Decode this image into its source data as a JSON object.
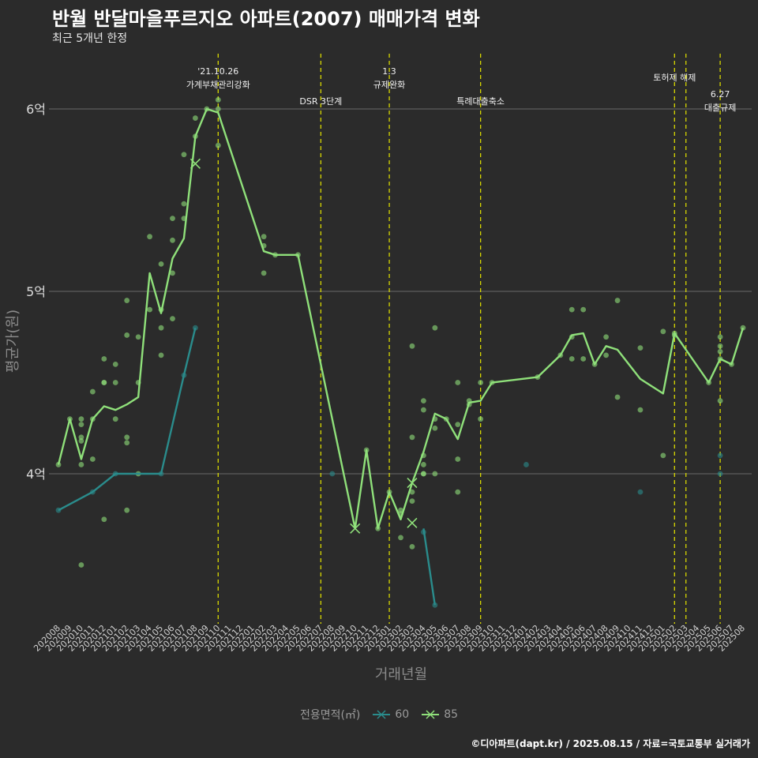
{
  "header": {
    "title": "반월 반달마을푸르지오 아파트(2007) 매매가격 변화",
    "subtitle": "최근 5개년 한정"
  },
  "caption": "©디아파트(dapt.kr) / 2025.08.15 / 자료=국토교통부 실거래가",
  "legend": {
    "title": "전용면적(㎡)",
    "items": [
      {
        "label": "60",
        "color": "#2a8c8c"
      },
      {
        "label": "85",
        "color": "#8fe07a"
      }
    ]
  },
  "colors": {
    "background": "#2b2b2b",
    "grid": "#6a6a6a",
    "policy_line": "#d8d800",
    "series_60": "#2a8c8c",
    "series_85": "#8fe07a"
  },
  "chart_data": {
    "type": "line",
    "xlabel": "거래년월",
    "ylabel": "평균가(원)",
    "yticks": [
      {
        "value": 4,
        "label": "4억"
      },
      {
        "value": 5,
        "label": "5억"
      },
      {
        "value": 6,
        "label": "6억"
      }
    ],
    "ylim": [
      3.2,
      6.35
    ],
    "grid": "horizontal",
    "legend_position": "bottom",
    "categories": [
      "202008",
      "202009",
      "202010",
      "202011",
      "202012",
      "202101",
      "202102",
      "202103",
      "202104",
      "202105",
      "202106",
      "202107",
      "202108",
      "202109",
      "202110",
      "202111",
      "202112",
      "202201",
      "202202",
      "202203",
      "202204",
      "202205",
      "202206",
      "202207",
      "202208",
      "202209",
      "202210",
      "202211",
      "202212",
      "202301",
      "202302",
      "202303",
      "202304",
      "202305",
      "202306",
      "202307",
      "202308",
      "202309",
      "202310",
      "202311",
      "202312",
      "202401",
      "202402",
      "202403",
      "202404",
      "202405",
      "202406",
      "202407",
      "202408",
      "202409",
      "202410",
      "202411",
      "202412",
      "202501",
      "202502",
      "202503",
      "202504",
      "202505",
      "202506",
      "202507",
      "202508"
    ],
    "series": [
      {
        "name": "60",
        "points": [
          {
            "x": "202008",
            "y": 3.8
          },
          {
            "x": "202011",
            "y": 3.9
          },
          {
            "x": "202101",
            "y": 4.0
          },
          {
            "x": "202105",
            "y": 4.0
          },
          {
            "x": "202107",
            "y": 4.54
          },
          {
            "x": "202108",
            "y": 4.8
          },
          {
            "x": "202304",
            "y": 3.7
          },
          {
            "x": "202305",
            "y": 3.28
          }
        ],
        "segments": [
          [
            0,
            5
          ],
          [
            6,
            7
          ]
        ],
        "markers": [],
        "scatter": [
          {
            "x": "202008",
            "y": 3.8
          },
          {
            "x": "202011",
            "y": 3.9
          },
          {
            "x": "202101",
            "y": 4.0
          },
          {
            "x": "202105",
            "y": 4.0
          },
          {
            "x": "202107",
            "y": 4.54
          },
          {
            "x": "202108",
            "y": 4.8
          },
          {
            "x": "202208",
            "y": 4.0
          },
          {
            "x": "202304",
            "y": 3.68
          },
          {
            "x": "202305",
            "y": 3.28
          },
          {
            "x": "202401",
            "y": 4.05
          },
          {
            "x": "202411",
            "y": 3.9
          },
          {
            "x": "202506",
            "y": 4.1
          },
          {
            "x": "202506",
            "y": 4.0
          }
        ]
      },
      {
        "name": "85",
        "points": [
          {
            "x": "202008",
            "y": 4.05
          },
          {
            "x": "202009",
            "y": 4.3
          },
          {
            "x": "202010",
            "y": 4.08
          },
          {
            "x": "202011",
            "y": 4.3
          },
          {
            "x": "202012",
            "y": 4.37
          },
          {
            "x": "202101",
            "y": 4.35
          },
          {
            "x": "202102",
            "y": 4.38
          },
          {
            "x": "202103",
            "y": 4.42
          },
          {
            "x": "202104",
            "y": 5.1
          },
          {
            "x": "202105",
            "y": 4.88
          },
          {
            "x": "202106",
            "y": 5.18
          },
          {
            "x": "202107",
            "y": 5.29
          },
          {
            "x": "202108",
            "y": 5.85
          },
          {
            "x": "202109",
            "y": 6.0
          },
          {
            "x": "202110",
            "y": 5.98
          },
          {
            "x": "202202",
            "y": 5.22
          },
          {
            "x": "202203",
            "y": 5.2
          },
          {
            "x": "202205",
            "y": 5.2
          },
          {
            "x": "202210",
            "y": 3.7
          },
          {
            "x": "202211",
            "y": 4.13
          },
          {
            "x": "202212",
            "y": 3.7
          },
          {
            "x": "202301",
            "y": 3.9
          },
          {
            "x": "202302",
            "y": 3.75
          },
          {
            "x": "202303",
            "y": 3.95
          },
          {
            "x": "202304",
            "y": 4.12
          },
          {
            "x": "202305",
            "y": 4.33
          },
          {
            "x": "202306",
            "y": 4.3
          },
          {
            "x": "202307",
            "y": 4.19
          },
          {
            "x": "202308",
            "y": 4.39
          },
          {
            "x": "202309",
            "y": 4.4
          },
          {
            "x": "202310",
            "y": 4.5
          },
          {
            "x": "202402",
            "y": 4.53
          },
          {
            "x": "202404",
            "y": 4.65
          },
          {
            "x": "202405",
            "y": 4.76
          },
          {
            "x": "202406",
            "y": 4.77
          },
          {
            "x": "202407",
            "y": 4.6
          },
          {
            "x": "202408",
            "y": 4.7
          },
          {
            "x": "202409",
            "y": 4.68
          },
          {
            "x": "202411",
            "y": 4.52
          },
          {
            "x": "202501",
            "y": 4.44
          },
          {
            "x": "202502",
            "y": 4.77
          },
          {
            "x": "202505",
            "y": 4.5
          },
          {
            "x": "202506",
            "y": 4.63
          },
          {
            "x": "202507",
            "y": 4.6
          },
          {
            "x": "202508",
            "y": 4.8
          }
        ],
        "segments": [
          [
            0,
            44
          ]
        ],
        "markers": [
          {
            "x": "202108",
            "y": 5.7
          },
          {
            "x": "202210",
            "y": 3.7
          },
          {
            "x": "202303",
            "y": 3.95
          },
          {
            "x": "202303",
            "y": 3.73
          }
        ],
        "scatter": [
          {
            "x": "202008",
            "y": 4.05
          },
          {
            "x": "202009",
            "y": 4.3
          },
          {
            "x": "202010",
            "y": 4.3
          },
          {
            "x": "202010",
            "y": 4.27
          },
          {
            "x": "202010",
            "y": 4.2
          },
          {
            "x": "202010",
            "y": 4.18
          },
          {
            "x": "202010",
            "y": 4.05
          },
          {
            "x": "202010",
            "y": 3.5
          },
          {
            "x": "202011",
            "y": 4.45
          },
          {
            "x": "202011",
            "y": 4.3
          },
          {
            "x": "202011",
            "y": 4.08
          },
          {
            "x": "202012",
            "y": 4.63
          },
          {
            "x": "202012",
            "y": 4.5
          },
          {
            "x": "202012",
            "y": 4.5
          },
          {
            "x": "202012",
            "y": 3.75
          },
          {
            "x": "202101",
            "y": 4.6
          },
          {
            "x": "202101",
            "y": 4.5
          },
          {
            "x": "202101",
            "y": 4.3
          },
          {
            "x": "202102",
            "y": 4.95
          },
          {
            "x": "202102",
            "y": 4.76
          },
          {
            "x": "202102",
            "y": 4.2
          },
          {
            "x": "202102",
            "y": 4.17
          },
          {
            "x": "202102",
            "y": 3.8
          },
          {
            "x": "202103",
            "y": 4.75
          },
          {
            "x": "202103",
            "y": 4.5
          },
          {
            "x": "202103",
            "y": 4.0
          },
          {
            "x": "202104",
            "y": 5.3
          },
          {
            "x": "202104",
            "y": 4.9
          },
          {
            "x": "202105",
            "y": 5.15
          },
          {
            "x": "202105",
            "y": 4.9
          },
          {
            "x": "202105",
            "y": 4.8
          },
          {
            "x": "202105",
            "y": 4.65
          },
          {
            "x": "202106",
            "y": 5.4
          },
          {
            "x": "202106",
            "y": 5.28
          },
          {
            "x": "202106",
            "y": 5.1
          },
          {
            "x": "202106",
            "y": 4.85
          },
          {
            "x": "202107",
            "y": 5.75
          },
          {
            "x": "202107",
            "y": 5.48
          },
          {
            "x": "202107",
            "y": 5.4
          },
          {
            "x": "202108",
            "y": 5.95
          },
          {
            "x": "202108",
            "y": 5.85
          },
          {
            "x": "202109",
            "y": 6.0
          },
          {
            "x": "202110",
            "y": 6.05
          },
          {
            "x": "202110",
            "y": 6.0
          },
          {
            "x": "202110",
            "y": 5.8
          },
          {
            "x": "202202",
            "y": 5.3
          },
          {
            "x": "202202",
            "y": 5.25
          },
          {
            "x": "202202",
            "y": 5.1
          },
          {
            "x": "202203",
            "y": 5.2
          },
          {
            "x": "202205",
            "y": 5.2
          },
          {
            "x": "202211",
            "y": 4.13
          },
          {
            "x": "202212",
            "y": 3.7
          },
          {
            "x": "202301",
            "y": 3.9
          },
          {
            "x": "202302",
            "y": 3.8
          },
          {
            "x": "202302",
            "y": 3.78
          },
          {
            "x": "202302",
            "y": 3.65
          },
          {
            "x": "202303",
            "y": 4.7
          },
          {
            "x": "202303",
            "y": 4.2
          },
          {
            "x": "202303",
            "y": 3.9
          },
          {
            "x": "202303",
            "y": 3.85
          },
          {
            "x": "202303",
            "y": 3.6
          },
          {
            "x": "202304",
            "y": 4.4
          },
          {
            "x": "202304",
            "y": 4.35
          },
          {
            "x": "202304",
            "y": 4.1
          },
          {
            "x": "202304",
            "y": 4.05
          },
          {
            "x": "202304",
            "y": 4.0
          },
          {
            "x": "202304",
            "y": 4.0
          },
          {
            "x": "202305",
            "y": 4.8
          },
          {
            "x": "202305",
            "y": 4.3
          },
          {
            "x": "202305",
            "y": 4.25
          },
          {
            "x": "202305",
            "y": 4.0
          },
          {
            "x": "202306",
            "y": 4.3
          },
          {
            "x": "202307",
            "y": 4.5
          },
          {
            "x": "202307",
            "y": 4.27
          },
          {
            "x": "202307",
            "y": 4.08
          },
          {
            "x": "202307",
            "y": 3.9
          },
          {
            "x": "202308",
            "y": 4.4
          },
          {
            "x": "202308",
            "y": 4.38
          },
          {
            "x": "202309",
            "y": 4.5
          },
          {
            "x": "202309",
            "y": 4.3
          },
          {
            "x": "202310",
            "y": 4.5
          },
          {
            "x": "202402",
            "y": 4.53
          },
          {
            "x": "202404",
            "y": 4.65
          },
          {
            "x": "202405",
            "y": 4.9
          },
          {
            "x": "202405",
            "y": 4.75
          },
          {
            "x": "202405",
            "y": 4.63
          },
          {
            "x": "202406",
            "y": 4.9
          },
          {
            "x": "202406",
            "y": 4.63
          },
          {
            "x": "202407",
            "y": 4.6
          },
          {
            "x": "202408",
            "y": 4.75
          },
          {
            "x": "202408",
            "y": 4.65
          },
          {
            "x": "202409",
            "y": 4.95
          },
          {
            "x": "202409",
            "y": 4.42
          },
          {
            "x": "202411",
            "y": 4.69
          },
          {
            "x": "202411",
            "y": 4.35
          },
          {
            "x": "202501",
            "y": 4.78
          },
          {
            "x": "202501",
            "y": 4.1
          },
          {
            "x": "202502",
            "y": 4.77
          },
          {
            "x": "202502",
            "y": 4.76
          },
          {
            "x": "202505",
            "y": 4.5
          },
          {
            "x": "202506",
            "y": 4.75
          },
          {
            "x": "202506",
            "y": 4.7
          },
          {
            "x": "202506",
            "y": 4.67
          },
          {
            "x": "202506",
            "y": 4.63
          },
          {
            "x": "202506",
            "y": 4.4
          },
          {
            "x": "202507",
            "y": 4.6
          },
          {
            "x": "202508",
            "y": 4.8
          }
        ]
      }
    ],
    "annotations": [
      {
        "x": 202110.0,
        "lines": [
          "'21.10.26",
          "가계부채관리강화"
        ],
        "row": 0
      },
      {
        "x": 202207.0,
        "lines": [
          "DSR 3단계"
        ],
        "row": 2
      },
      {
        "x": 202301.0,
        "lines": [
          "1.3",
          "규제완화"
        ],
        "row": 0
      },
      {
        "x": 202309.0,
        "lines": [
          "특례대출축소"
        ],
        "row": 2
      },
      {
        "x": 202502.0,
        "lines": [
          "토허제 해제"
        ],
        "row": 1
      },
      {
        "x": 202503.0,
        "lines": [],
        "row": 0
      },
      {
        "x": 202506.0,
        "lines": [
          "6.27",
          "대출규제"
        ],
        "row": 1.5
      }
    ]
  }
}
